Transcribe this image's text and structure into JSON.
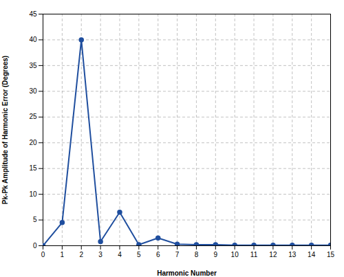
{
  "chart_data": {
    "type": "line",
    "xlabel": "Harmonic Number",
    "ylabel": "Pk-Pk Amplitude of Harmonic Error (Degrees)",
    "x": [
      0,
      1,
      2,
      3,
      4,
      5,
      6,
      7,
      8,
      9,
      10,
      11,
      12,
      13,
      14,
      15
    ],
    "values": [
      0,
      4.5,
      40.0,
      0.8,
      6.5,
      0.2,
      1.5,
      0.3,
      0.2,
      0.2,
      0.1,
      0.1,
      0.1,
      0.1,
      0.1,
      0.1
    ],
    "color": "#1f4e9e",
    "marker": "circle",
    "xlim": [
      0,
      15
    ],
    "ylim": [
      0,
      45
    ],
    "xticks": [
      0,
      1,
      2,
      3,
      4,
      5,
      6,
      7,
      8,
      9,
      10,
      11,
      12,
      13,
      14,
      15
    ],
    "yticks": [
      0,
      5,
      10,
      15,
      20,
      25,
      30,
      35,
      40,
      45
    ],
    "grid": true
  }
}
